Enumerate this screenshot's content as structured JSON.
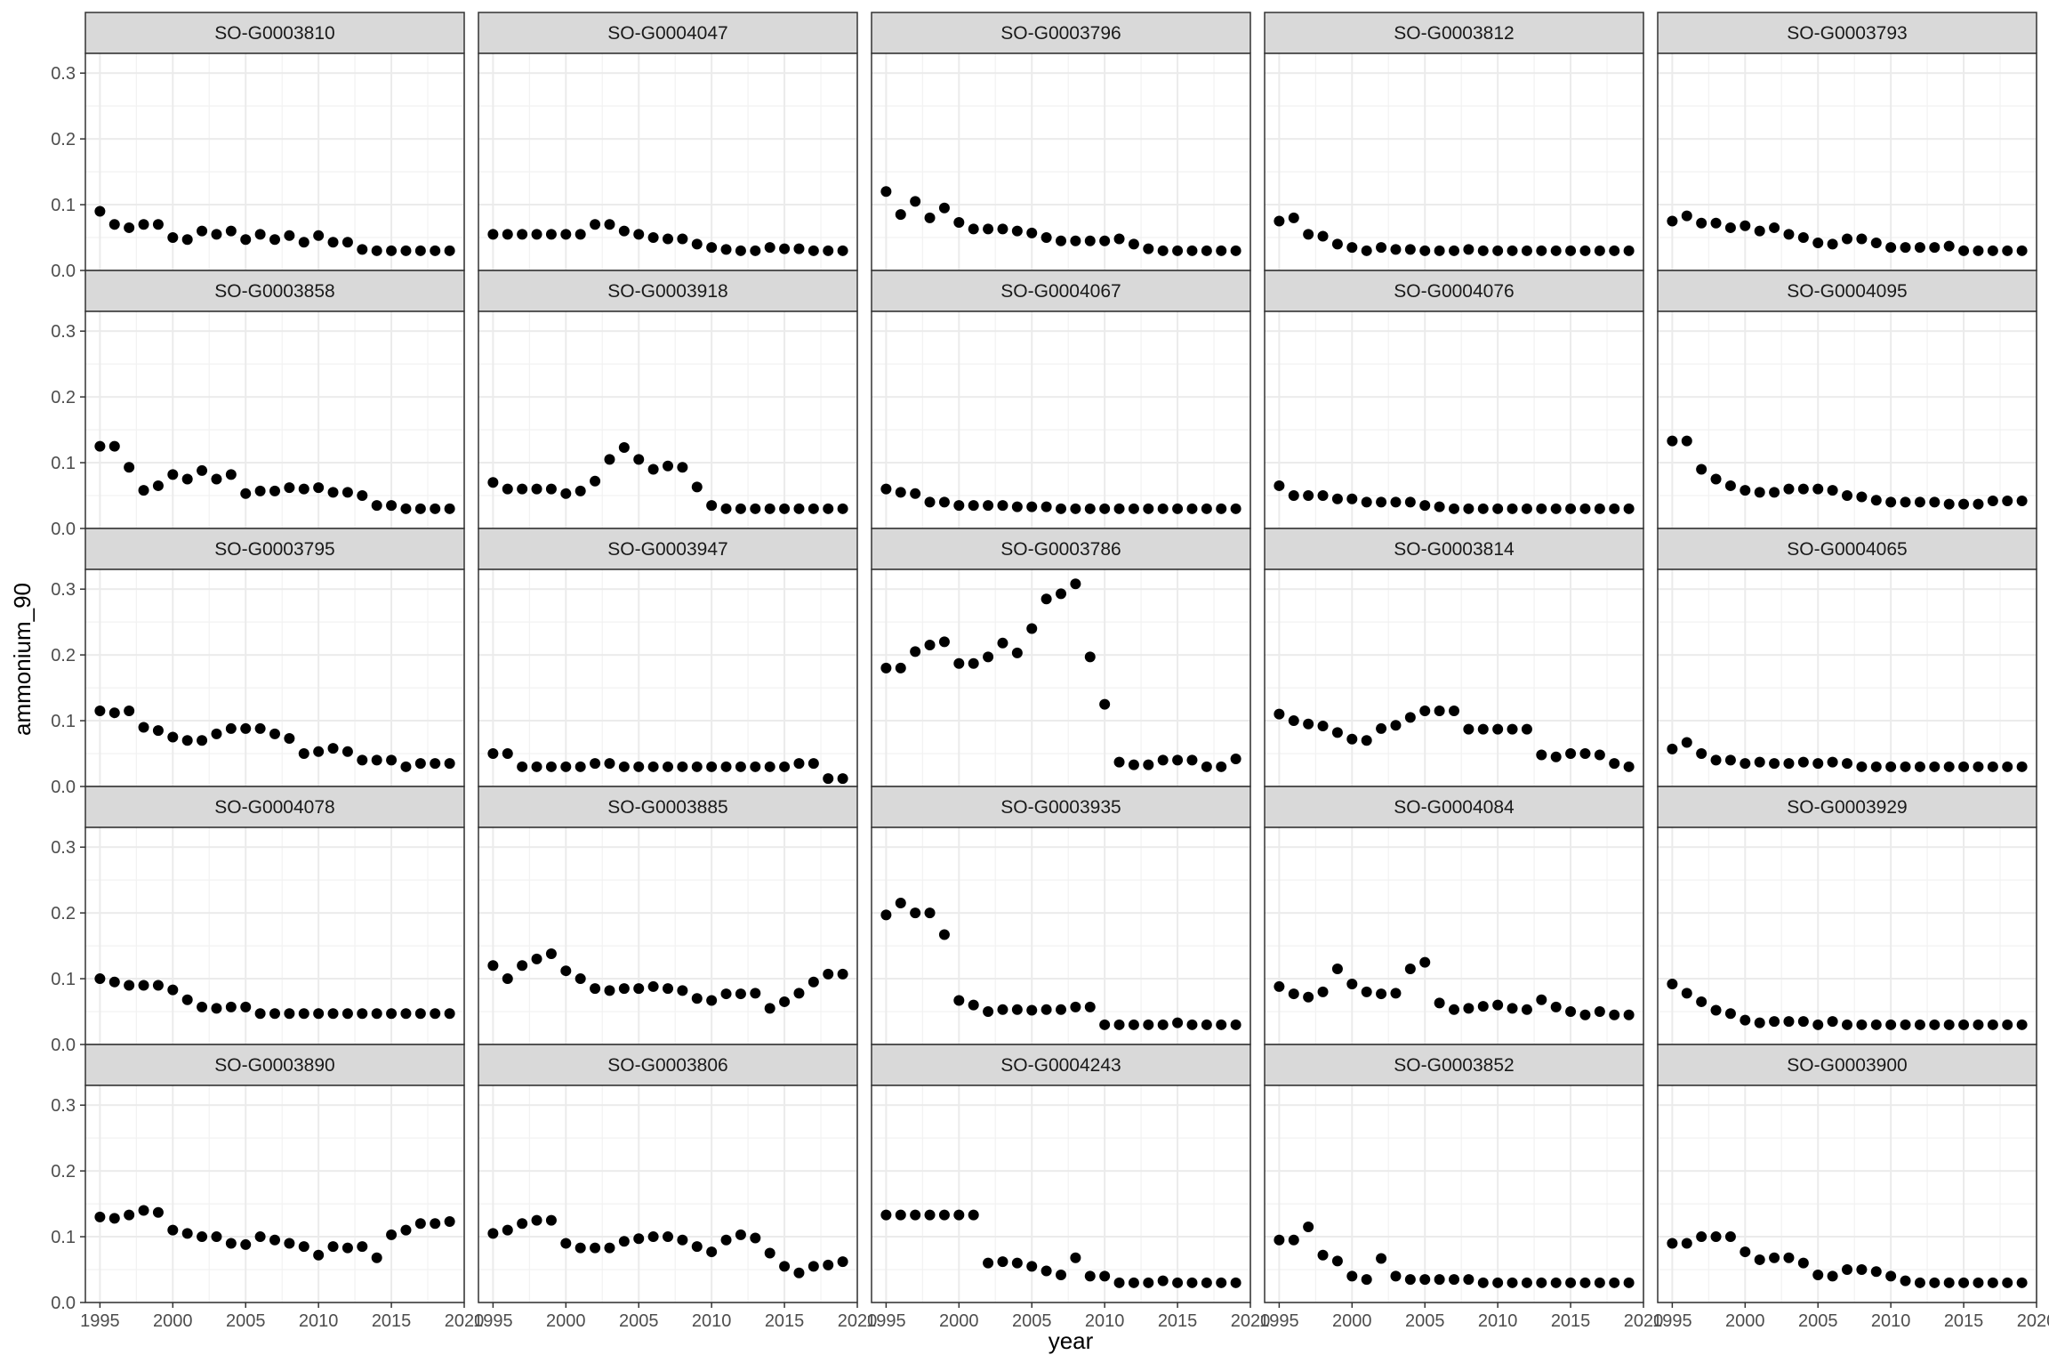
{
  "chart_data": {
    "type": "scatter",
    "facet_layout": "5x5 grid",
    "xlabel": "year",
    "ylabel": "ammonium_90",
    "xlim": [
      1994,
      2020
    ],
    "ylim": [
      0,
      0.33
    ],
    "x_ticks": [
      1995,
      2000,
      2005,
      2010,
      2015,
      2020
    ],
    "x_tick_labels": [
      "1995",
      "2000",
      "2005",
      "2010",
      "2015",
      "2020"
    ],
    "y_ticks": [
      0,
      0.1,
      0.2,
      0.3
    ],
    "y_tick_labels": [
      "0.0",
      "0.1",
      "0.2",
      "0.3"
    ],
    "grid": true,
    "x": [
      1995,
      1996,
      1997,
      1998,
      1999,
      2000,
      2001,
      2002,
      2003,
      2004,
      2005,
      2006,
      2007,
      2008,
      2009,
      2010,
      2011,
      2012,
      2013,
      2014,
      2015,
      2016,
      2017,
      2018,
      2019
    ],
    "series": [
      {
        "name": "SO-G0003810",
        "values": [
          0.09,
          0.07,
          0.065,
          0.07,
          0.07,
          0.05,
          0.047,
          0.06,
          0.055,
          0.06,
          0.047,
          0.055,
          0.047,
          0.053,
          0.043,
          0.053,
          0.043,
          0.043,
          0.032,
          0.03,
          0.03,
          0.03,
          0.03,
          0.03,
          0.03
        ]
      },
      {
        "name": "SO-G0004047",
        "values": [
          0.055,
          0.055,
          0.055,
          0.055,
          0.055,
          0.055,
          0.055,
          0.07,
          0.07,
          0.06,
          0.055,
          0.05,
          0.048,
          0.048,
          0.04,
          0.035,
          0.032,
          0.03,
          0.03,
          0.035,
          0.033,
          0.033,
          0.03,
          0.03,
          0.03
        ]
      },
      {
        "name": "SO-G0003796",
        "values": [
          0.12,
          0.085,
          0.105,
          0.08,
          0.095,
          0.073,
          0.063,
          0.063,
          0.063,
          0.06,
          0.057,
          0.05,
          0.045,
          0.045,
          0.045,
          0.045,
          0.048,
          0.04,
          0.033,
          0.03,
          0.03,
          0.03,
          0.03,
          0.03,
          0.03
        ]
      },
      {
        "name": "SO-G0003812",
        "values": [
          0.075,
          0.08,
          0.055,
          0.052,
          0.04,
          0.035,
          0.03,
          0.035,
          0.032,
          0.032,
          0.03,
          0.03,
          0.03,
          0.032,
          0.03,
          0.03,
          0.03,
          0.03,
          0.03,
          0.03,
          0.03,
          0.03,
          0.03,
          0.03,
          0.03
        ]
      },
      {
        "name": "SO-G0003793",
        "values": [
          0.075,
          0.083,
          0.072,
          0.072,
          0.065,
          0.068,
          0.06,
          0.065,
          0.055,
          0.05,
          0.042,
          0.04,
          0.048,
          0.048,
          0.042,
          0.035,
          0.035,
          0.035,
          0.035,
          0.037,
          0.03,
          0.03,
          0.03,
          0.03,
          0.03
        ]
      },
      {
        "name": "SO-G0003858",
        "values": [
          0.125,
          0.125,
          0.093,
          0.058,
          0.065,
          0.082,
          0.075,
          0.088,
          0.075,
          0.082,
          0.053,
          0.057,
          0.057,
          0.062,
          0.06,
          0.062,
          0.055,
          0.055,
          0.05,
          0.035,
          0.035,
          0.03,
          0.03,
          0.03,
          0.03
        ]
      },
      {
        "name": "SO-G0003918",
        "values": [
          0.07,
          0.06,
          0.06,
          0.06,
          0.06,
          0.053,
          0.057,
          0.072,
          0.105,
          0.123,
          0.105,
          0.09,
          0.095,
          0.093,
          0.063,
          0.035,
          0.03,
          0.03,
          0.03,
          0.03,
          0.03,
          0.03,
          0.03,
          0.03,
          0.03
        ]
      },
      {
        "name": "SO-G0004067",
        "values": [
          0.06,
          0.055,
          0.053,
          0.04,
          0.04,
          0.035,
          0.035,
          0.035,
          0.035,
          0.033,
          0.033,
          0.033,
          0.03,
          0.03,
          0.03,
          0.03,
          0.03,
          0.03,
          0.03,
          0.03,
          0.03,
          0.03,
          0.03,
          0.03,
          0.03
        ]
      },
      {
        "name": "SO-G0004076",
        "values": [
          0.065,
          0.05,
          0.05,
          0.05,
          0.045,
          0.045,
          0.04,
          0.04,
          0.04,
          0.04,
          0.035,
          0.033,
          0.03,
          0.03,
          0.03,
          0.03,
          0.03,
          0.03,
          0.03,
          0.03,
          0.03,
          0.03,
          0.03,
          0.03,
          0.03
        ]
      },
      {
        "name": "SO-G0004095",
        "values": [
          0.133,
          0.133,
          0.09,
          0.075,
          0.065,
          0.058,
          0.055,
          0.055,
          0.06,
          0.06,
          0.06,
          0.058,
          0.05,
          0.048,
          0.043,
          0.04,
          0.04,
          0.04,
          0.04,
          0.037,
          0.037,
          0.037,
          0.042,
          0.042,
          0.042
        ]
      },
      {
        "name": "SO-G0003795",
        "values": [
          0.115,
          0.112,
          0.115,
          0.09,
          0.085,
          0.075,
          0.07,
          0.07,
          0.08,
          0.088,
          0.088,
          0.088,
          0.08,
          0.073,
          0.05,
          0.053,
          0.058,
          0.053,
          0.04,
          0.04,
          0.04,
          0.03,
          0.035,
          0.035,
          0.035
        ]
      },
      {
        "name": "SO-G0003947",
        "values": [
          0.05,
          0.05,
          0.03,
          0.03,
          0.03,
          0.03,
          0.03,
          0.035,
          0.035,
          0.03,
          0.03,
          0.03,
          0.03,
          0.03,
          0.03,
          0.03,
          0.03,
          0.03,
          0.03,
          0.03,
          0.03,
          0.035,
          0.035,
          0.012,
          0.012
        ]
      },
      {
        "name": "SO-G0003786",
        "values": [
          0.18,
          0.18,
          0.205,
          0.215,
          0.22,
          0.187,
          0.187,
          0.197,
          0.218,
          0.203,
          0.24,
          0.285,
          0.293,
          0.308,
          0.197,
          0.125,
          0.037,
          0.033,
          0.033,
          0.04,
          0.04,
          0.04,
          0.03,
          0.03,
          0.042
        ]
      },
      {
        "name": "SO-G0003814",
        "values": [
          0.11,
          0.1,
          0.095,
          0.092,
          0.082,
          0.072,
          0.07,
          0.088,
          0.093,
          0.105,
          0.115,
          0.115,
          0.115,
          0.087,
          0.087,
          0.087,
          0.087,
          0.087,
          0.048,
          0.045,
          0.05,
          0.05,
          0.048,
          0.035,
          0.03
        ]
      },
      {
        "name": "SO-G0004065",
        "values": [
          0.057,
          0.067,
          0.05,
          0.04,
          0.04,
          0.035,
          0.037,
          0.035,
          0.035,
          0.037,
          0.035,
          0.037,
          0.035,
          0.03,
          0.03,
          0.03,
          0.03,
          0.03,
          0.03,
          0.03,
          0.03,
          0.03,
          0.03,
          0.03,
          0.03
        ]
      },
      {
        "name": "SO-G0004078",
        "values": [
          0.1,
          0.095,
          0.09,
          0.09,
          0.09,
          0.083,
          0.068,
          0.057,
          0.055,
          0.057,
          0.057,
          0.047,
          0.047,
          0.047,
          0.047,
          0.047,
          0.047,
          0.047,
          0.047,
          0.047,
          0.047,
          0.047,
          0.047,
          0.047,
          0.047
        ]
      },
      {
        "name": "SO-G0003885",
        "values": [
          0.12,
          0.1,
          0.12,
          0.13,
          0.138,
          0.112,
          0.1,
          0.085,
          0.082,
          0.085,
          0.085,
          0.088,
          0.085,
          0.082,
          0.07,
          0.067,
          0.077,
          0.077,
          0.078,
          0.055,
          0.065,
          0.078,
          0.095,
          0.107,
          0.107
        ]
      },
      {
        "name": "SO-G0003935",
        "values": [
          0.197,
          0.215,
          0.2,
          0.2,
          0.167,
          0.067,
          0.06,
          0.05,
          0.053,
          0.053,
          0.052,
          0.053,
          0.053,
          0.057,
          0.057,
          0.03,
          0.03,
          0.03,
          0.03,
          0.03,
          0.033,
          0.03,
          0.03,
          0.03,
          0.03
        ]
      },
      {
        "name": "SO-G0004084",
        "values": [
          0.088,
          0.077,
          0.072,
          0.08,
          0.115,
          0.092,
          0.08,
          0.077,
          0.078,
          0.115,
          0.125,
          0.063,
          0.053,
          0.055,
          0.058,
          0.06,
          0.055,
          0.053,
          0.068,
          0.057,
          0.05,
          0.045,
          0.05,
          0.045,
          0.045
        ]
      },
      {
        "name": "SO-G0003929",
        "values": [
          0.092,
          0.078,
          0.065,
          0.052,
          0.047,
          0.037,
          0.033,
          0.035,
          0.035,
          0.035,
          0.03,
          0.035,
          0.03,
          0.03,
          0.03,
          0.03,
          0.03,
          0.03,
          0.03,
          0.03,
          0.03,
          0.03,
          0.03,
          0.03,
          0.03
        ]
      },
      {
        "name": "SO-G0003890",
        "values": [
          0.13,
          0.128,
          0.133,
          0.14,
          0.137,
          0.11,
          0.105,
          0.1,
          0.1,
          0.09,
          0.088,
          0.1,
          0.095,
          0.09,
          0.085,
          0.072,
          0.085,
          0.083,
          0.085,
          0.068,
          0.103,
          0.11,
          0.12,
          0.12,
          0.123
        ]
      },
      {
        "name": "SO-G0003806",
        "values": [
          0.105,
          0.11,
          0.12,
          0.125,
          0.125,
          0.09,
          0.083,
          0.083,
          0.083,
          0.093,
          0.097,
          0.1,
          0.1,
          0.095,
          0.085,
          0.077,
          0.095,
          0.103,
          0.098,
          0.075,
          0.055,
          0.045,
          0.055,
          0.057,
          0.062
        ]
      },
      {
        "name": "SO-G0004243",
        "values": [
          0.133,
          0.133,
          0.133,
          0.133,
          0.133,
          0.133,
          0.133,
          0.06,
          0.062,
          0.06,
          0.055,
          0.048,
          0.042,
          0.068,
          0.04,
          0.04,
          0.03,
          0.03,
          0.03,
          0.033,
          0.03,
          0.03,
          0.03,
          0.03,
          0.03
        ]
      },
      {
        "name": "SO-G0003852",
        "values": [
          0.095,
          0.095,
          0.115,
          0.072,
          0.063,
          0.04,
          0.035,
          0.067,
          0.04,
          0.035,
          0.035,
          0.035,
          0.035,
          0.035,
          0.03,
          0.03,
          0.03,
          0.03,
          0.03,
          0.03,
          0.03,
          0.03,
          0.03,
          0.03,
          0.03
        ]
      },
      {
        "name": "SO-G0003900",
        "values": [
          0.09,
          0.09,
          0.1,
          0.1,
          0.1,
          0.077,
          0.065,
          0.068,
          0.068,
          0.06,
          0.042,
          0.04,
          0.05,
          0.05,
          0.047,
          0.04,
          0.033,
          0.03,
          0.03,
          0.03,
          0.03,
          0.03,
          0.03,
          0.03,
          0.03
        ]
      }
    ]
  }
}
